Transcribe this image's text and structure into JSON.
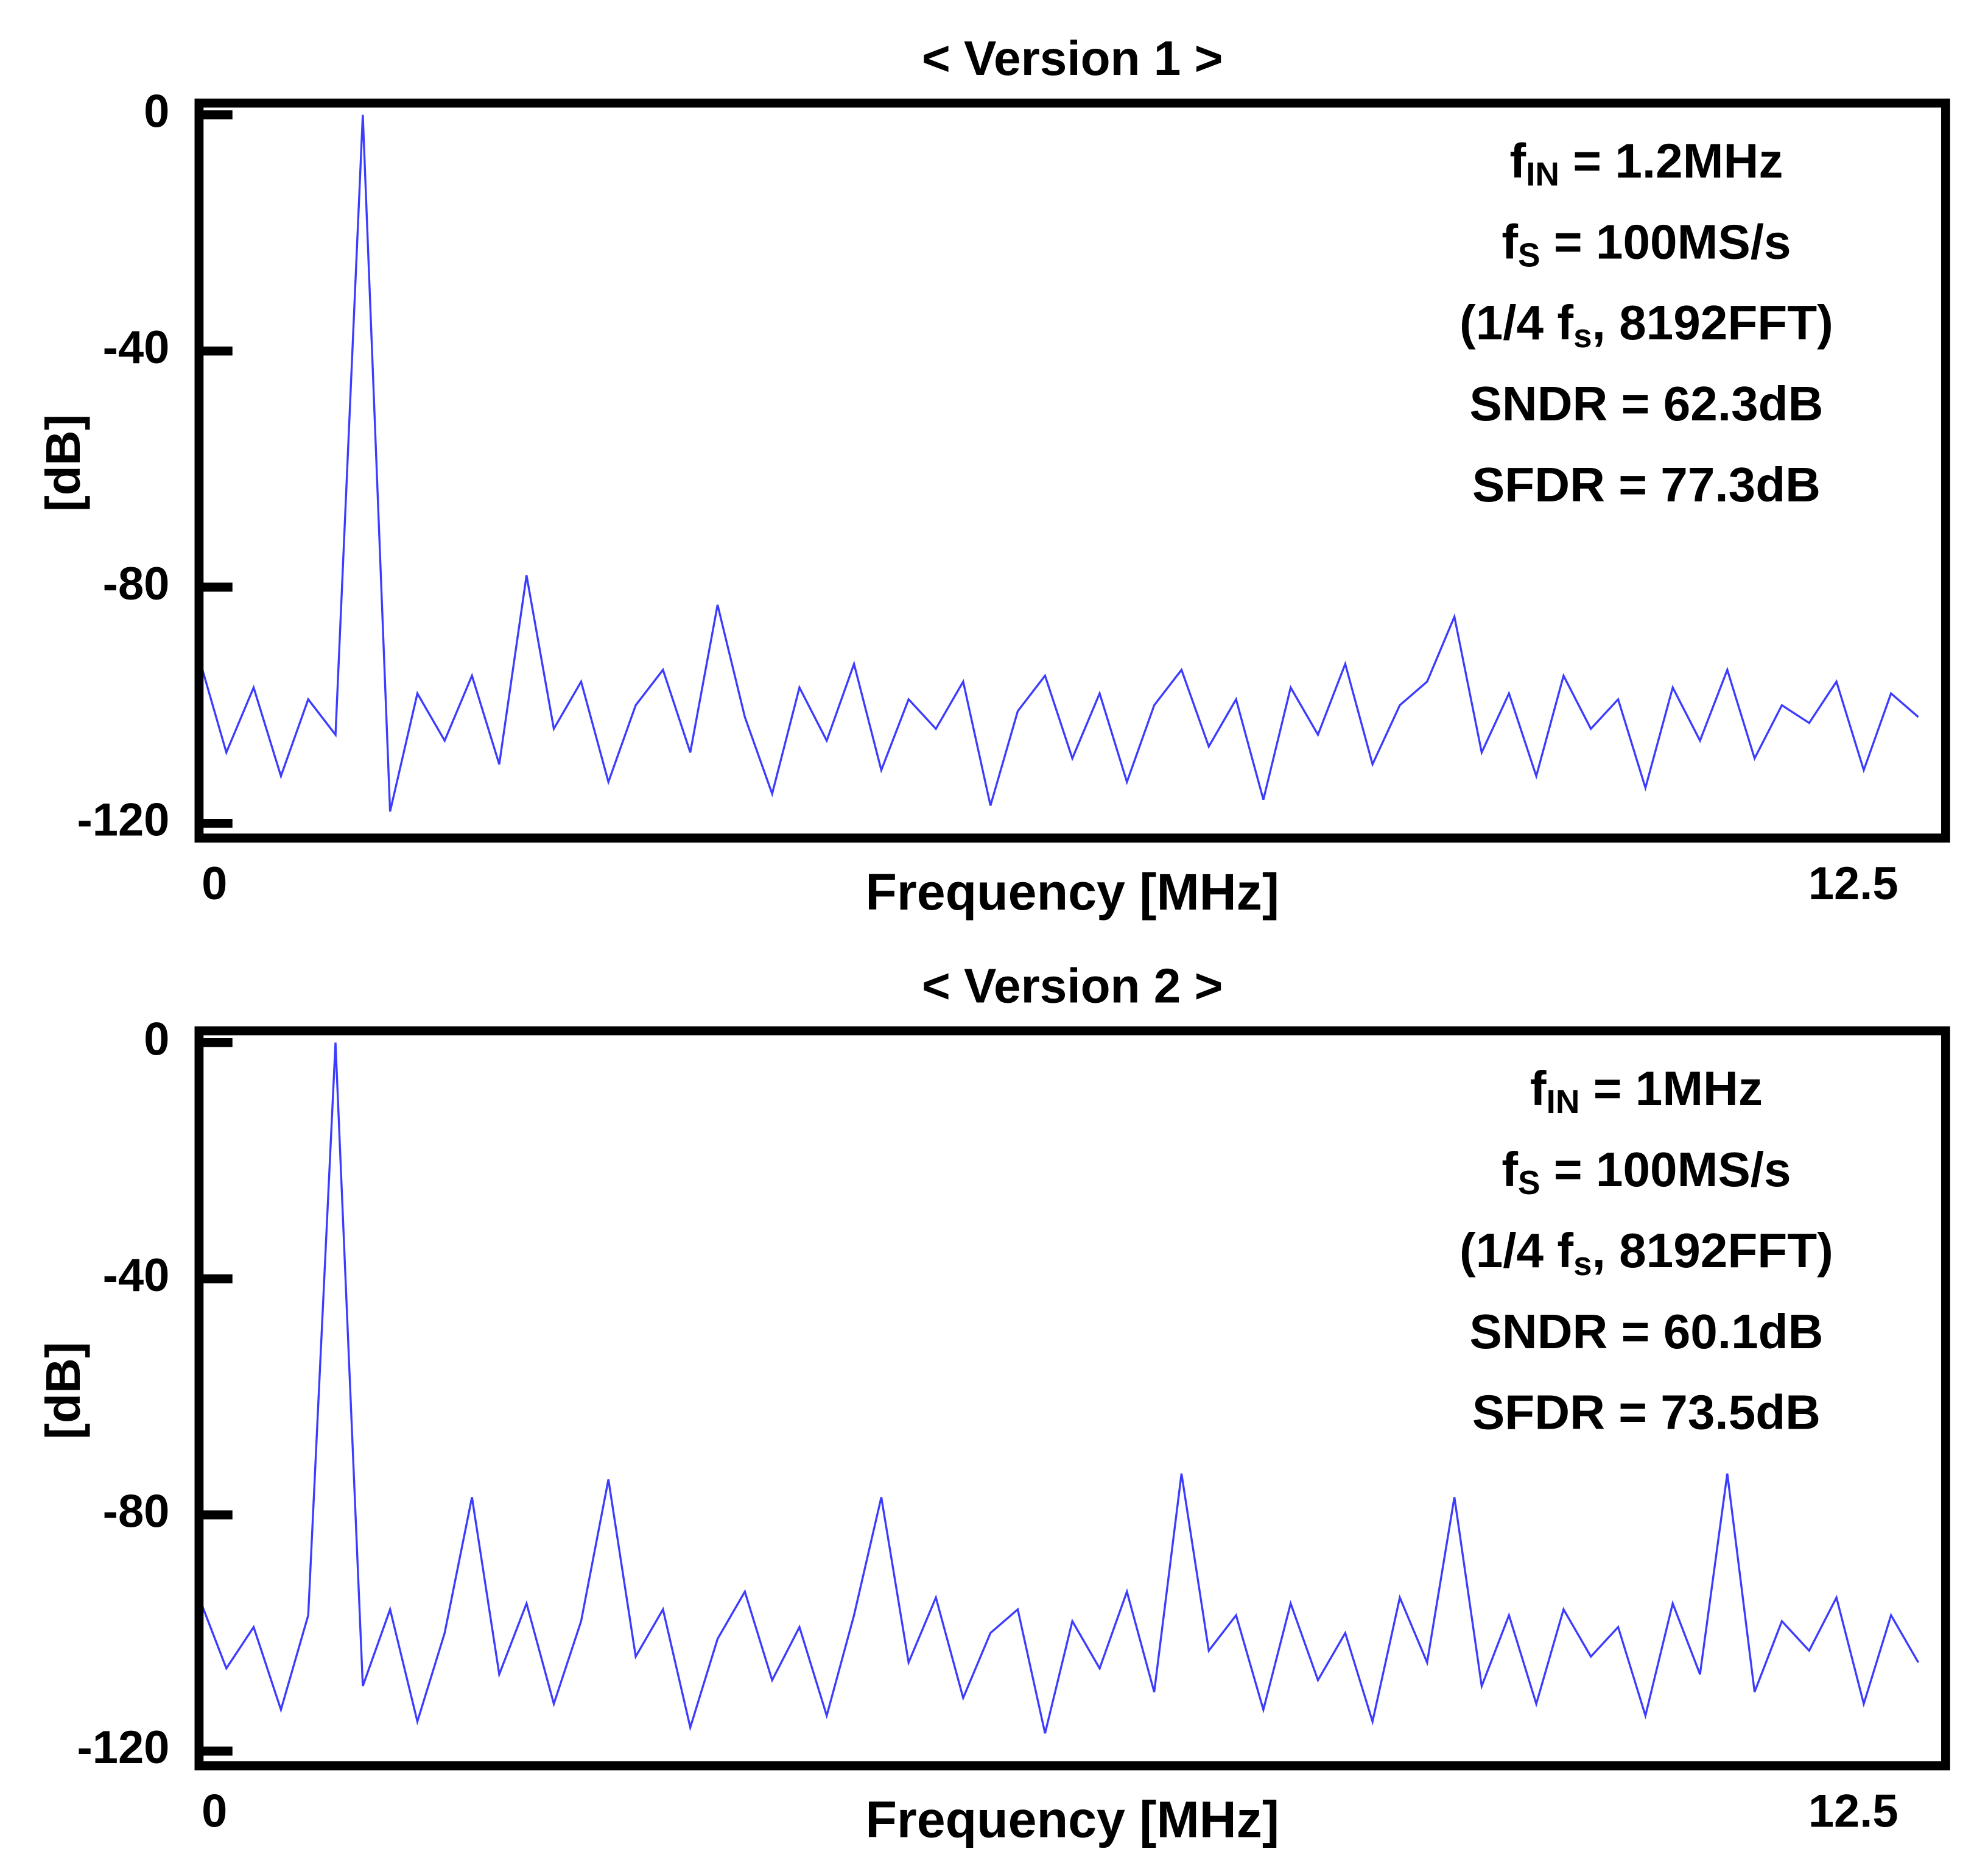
{
  "chart_data": [
    {
      "type": "line",
      "title": "< Version 1 >",
      "x_label": "Frequency [MHz]",
      "y_label": "[dB]",
      "xlim": [
        0,
        12.8
      ],
      "xticks": [
        0,
        12.5
      ],
      "ylim": [
        -122.5,
        2
      ],
      "yticks": [
        0,
        -40,
        -80,
        -120
      ],
      "color": "#1a1aff",
      "annotation": [
        [
          {
            "text": "f"
          },
          {
            "text": "IN",
            "sub": true
          },
          {
            "text": " = 1.2MHz"
          }
        ],
        [
          {
            "text": "f"
          },
          {
            "text": "S",
            "sub": true
          },
          {
            "text": " = 100MS/s"
          }
        ],
        [
          {
            "text": "(1/4 f"
          },
          {
            "text": "s",
            "sub": true
          },
          {
            "text": ", 8192FFT)"
          }
        ],
        [
          {
            "text": "SNDR = 62.3dB"
          }
        ],
        [
          {
            "text": "SFDR = 77.3dB"
          }
        ]
      ],
      "x": [
        0,
        0.2,
        0.4,
        0.6,
        0.8,
        1.0,
        1.2,
        1.4,
        1.6,
        1.8,
        2.0,
        2.2,
        2.4,
        2.6,
        2.8,
        3.0,
        3.2,
        3.4,
        3.6,
        3.8,
        4.0,
        4.2,
        4.4,
        4.6,
        4.8,
        5.0,
        5.2,
        5.4,
        5.6,
        5.8,
        6.0,
        6.2,
        6.4,
        6.6,
        6.8,
        7.0,
        7.2,
        7.4,
        7.6,
        7.8,
        8.0,
        8.2,
        8.4,
        8.6,
        8.8,
        9.0,
        9.2,
        9.4,
        9.6,
        9.8,
        10.0,
        10.2,
        10.4,
        10.6,
        10.8,
        11.0,
        11.2,
        11.4,
        11.6,
        11.8,
        12.0,
        12.2,
        12.4,
        12.6
      ],
      "values": [
        -92,
        -108,
        -97,
        -112,
        -99,
        -105,
        0,
        -118,
        -98,
        -106,
        -95,
        -110,
        -78,
        -104,
        -96,
        -113,
        -100,
        -94,
        -108,
        -83,
        -102,
        -115,
        -97,
        -106,
        -93,
        -111,
        -99,
        -104,
        -96,
        -117,
        -101,
        -95,
        -109,
        -98,
        -113,
        -100,
        -94,
        -107,
        -99,
        -116,
        -97,
        -105,
        -93,
        -110,
        -100,
        -96,
        -85,
        -108,
        -98,
        -112,
        -95,
        -104,
        -99,
        -114,
        -97,
        -106,
        -94,
        -109,
        -100,
        -103,
        -96,
        -111,
        -98,
        -102
      ]
    },
    {
      "type": "line",
      "title": "< Version 2 >",
      "x_label": "Frequency [MHz]",
      "y_label": "[dB]",
      "xlim": [
        0,
        12.8
      ],
      "xticks": [
        0,
        12.5
      ],
      "ylim": [
        -122.5,
        2
      ],
      "yticks": [
        0,
        -40,
        -80,
        -120
      ],
      "color": "#1a1aff",
      "annotation": [
        [
          {
            "text": "f"
          },
          {
            "text": "IN",
            "sub": true
          },
          {
            "text": " = 1MHz"
          }
        ],
        [
          {
            "text": "f"
          },
          {
            "text": "S",
            "sub": true
          },
          {
            "text": " = 100MS/s"
          }
        ],
        [
          {
            "text": "(1/4 f"
          },
          {
            "text": "s",
            "sub": true
          },
          {
            "text": ", 8192FFT)"
          }
        ],
        [
          {
            "text": "SNDR = 60.1dB"
          }
        ],
        [
          {
            "text": "SFDR = 73.5dB"
          }
        ]
      ],
      "x": [
        0,
        0.2,
        0.4,
        0.6,
        0.8,
        1.0,
        1.2,
        1.4,
        1.6,
        1.8,
        2.0,
        2.2,
        2.4,
        2.6,
        2.8,
        3.0,
        3.2,
        3.4,
        3.6,
        3.8,
        4.0,
        4.2,
        4.4,
        4.6,
        4.8,
        5.0,
        5.2,
        5.4,
        5.6,
        5.8,
        6.0,
        6.2,
        6.4,
        6.6,
        6.8,
        7.0,
        7.2,
        7.4,
        7.6,
        7.8,
        8.0,
        8.2,
        8.4,
        8.6,
        8.8,
        9.0,
        9.2,
        9.4,
        9.6,
        9.8,
        10.0,
        10.2,
        10.4,
        10.6,
        10.8,
        11.0,
        11.2,
        11.4,
        11.6,
        11.8,
        12.0,
        12.2,
        12.4,
        12.6
      ],
      "values": [
        -94,
        -106,
        -99,
        -113,
        -97,
        0,
        -109,
        -96,
        -115,
        -100,
        -77,
        -107,
        -95,
        -112,
        -98,
        -74,
        -104,
        -96,
        -116,
        -101,
        -93,
        -108,
        -99,
        -114,
        -97,
        -77,
        -105,
        -94,
        -111,
        -100,
        -96,
        -117,
        -98,
        -106,
        -93,
        -110,
        -73,
        -103,
        -97,
        -113,
        -95,
        -108,
        -100,
        -115,
        -94,
        -105,
        -77,
        -109,
        -97,
        -112,
        -96,
        -104,
        -99,
        -114,
        -95,
        -107,
        -73,
        -110,
        -98,
        -103,
        -94,
        -112,
        -97,
        -105
      ]
    }
  ]
}
